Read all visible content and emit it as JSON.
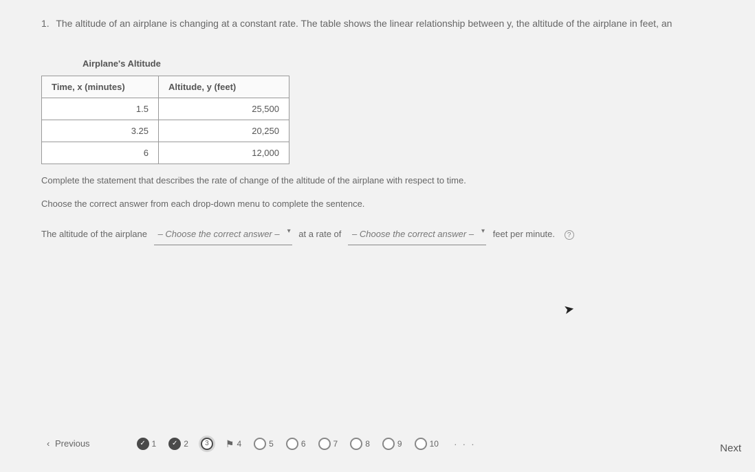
{
  "question": {
    "number": "1.",
    "text": "The altitude of an airplane is changing at a constant rate. The table shows the linear relationship between y, the altitude of the airplane in feet, an"
  },
  "table": {
    "title": "Airplane's Altitude",
    "headers": {
      "time": "Time, x (minutes)",
      "alt": "Altitude, y (feet)"
    },
    "rows": [
      {
        "time": "1.5",
        "alt": "25,500"
      },
      {
        "time": "3.25",
        "alt": "20,250"
      },
      {
        "time": "6",
        "alt": "12,000"
      }
    ]
  },
  "instr1": "Complete the statement that describes the rate of change of the altitude of the airplane with respect to time.",
  "instr2": "Choose the correct answer from each drop-down menu to complete the sentence.",
  "sentence": {
    "lead": "The altitude of the airplane",
    "dd1_placeholder": "– Choose the correct answer – ",
    "mid": "at a rate of",
    "dd2_placeholder": "– Choose the correct answer – ",
    "tail": "feet per minute.",
    "help": "?"
  },
  "nav": {
    "prev": "Previous",
    "next": "Next",
    "items": [
      {
        "n": "1",
        "state": "done"
      },
      {
        "n": "2",
        "state": "done"
      },
      {
        "n": "3",
        "state": "current"
      },
      {
        "n": "4",
        "state": "flag"
      },
      {
        "n": "5",
        "state": "open"
      },
      {
        "n": "6",
        "state": "open"
      },
      {
        "n": "7",
        "state": "open"
      },
      {
        "n": "8",
        "state": "open"
      },
      {
        "n": "9",
        "state": "open"
      },
      {
        "n": "10",
        "state": "open"
      }
    ],
    "dots": "· · ·"
  }
}
